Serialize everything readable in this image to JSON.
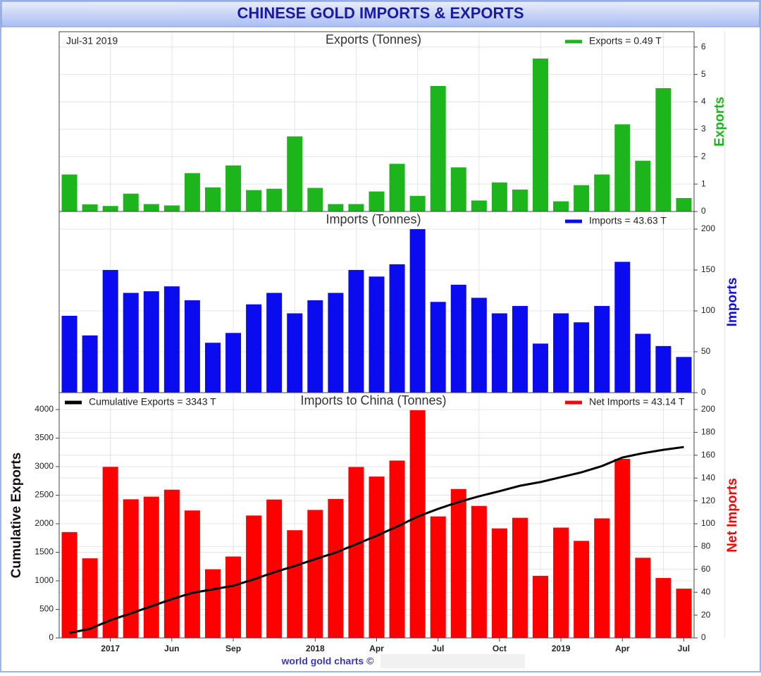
{
  "title": "CHINESE GOLD IMPORTS & EXPORTS",
  "footer": "world gold charts ©",
  "chart_data": [
    {
      "type": "bar",
      "title": "Exports (Tonnes)",
      "annotation": "Jul-31  2019",
      "y2_label": "Exports",
      "series": [
        {
          "name": "Exports = 0.49 T",
          "color": "#1cb51c",
          "axis": "y2",
          "values": [
            1.35,
            0.26,
            0.2,
            0.65,
            0.27,
            0.22,
            1.4,
            0.88,
            1.68,
            0.78,
            0.83,
            2.74,
            0.86,
            0.27,
            0.27,
            0.73,
            1.74,
            0.57,
            4.58,
            1.61,
            0.4,
            1.06,
            0.8,
            5.58,
            0.37,
            0.96,
            1.35,
            3.18,
            1.85,
            4.5,
            0.49
          ]
        }
      ],
      "y2lim": [
        0,
        6.56
      ],
      "y2ticks": [
        0,
        1,
        2,
        3,
        4,
        5,
        6
      ],
      "grid": true
    },
    {
      "type": "bar",
      "title": "Imports (Tonnes)",
      "y2_label": "Imports",
      "series": [
        {
          "name": "Imports = 43.63 T",
          "color": "#0b0bef",
          "axis": "y2",
          "values": [
            94,
            70,
            150,
            122,
            124,
            130,
            113,
            61,
            73,
            108,
            122,
            97,
            113,
            122,
            150,
            142,
            157,
            200,
            111,
            132,
            116,
            97,
            106,
            60,
            97,
            86,
            106,
            160,
            72,
            57,
            43.63
          ]
        }
      ],
      "y2lim": [
        0,
        221.6
      ],
      "y2ticks": [
        0,
        50,
        100,
        150,
        200
      ],
      "grid": true
    },
    {
      "type": "bar",
      "title": "Imports to China (Tonnes)",
      "y_label": "Cumulative Exports",
      "y2_label": "Net Imports",
      "categories": [
        null,
        null,
        "2017",
        null,
        null,
        "Jun",
        null,
        null,
        "Sep",
        null,
        null,
        null,
        "2018",
        null,
        null,
        "Apr",
        null,
        null,
        "Jul",
        null,
        null,
        "Oct",
        null,
        null,
        "2019",
        null,
        null,
        "Apr",
        null,
        null,
        "Jul"
      ],
      "series": [
        {
          "name": "Net Imports = 43.14 T",
          "color": "#ff0000",
          "axis": "y2",
          "type": "bar",
          "values": [
            92.7,
            69.7,
            149.8,
            121.4,
            123.7,
            129.8,
            111.6,
            60.1,
            71.3,
            107.2,
            121.2,
            94.3,
            112.1,
            121.7,
            149.7,
            141.3,
            155.3,
            199.4,
            106.4,
            130.4,
            115.6,
            95.9,
            105.2,
            54.4,
            96.6,
            85.0,
            104.7,
            156.8,
            70.2,
            52.5,
            43.14
          ]
        },
        {
          "name": "Cumulative Exports  = 3343 T",
          "color": "#000000",
          "axis": "y",
          "type": "line",
          "values": [
            86,
            160,
            310,
            430,
            555,
            680,
            790,
            850,
            915,
            1025,
            1150,
            1260,
            1380,
            1495,
            1640,
            1790,
            1950,
            2125,
            2260,
            2380,
            2480,
            2570,
            2665,
            2730,
            2815,
            2900,
            3010,
            3160,
            3235,
            3295,
            3343
          ]
        }
      ],
      "ylim": [
        0,
        4296
      ],
      "yticks": [
        0,
        500,
        1000,
        1500,
        2000,
        2500,
        3000,
        3500,
        4000
      ],
      "y2lim": [
        0,
        214.8
      ],
      "y2ticks": [
        0,
        20,
        40,
        60,
        80,
        100,
        120,
        140,
        160,
        180,
        200
      ],
      "grid": true
    }
  ]
}
